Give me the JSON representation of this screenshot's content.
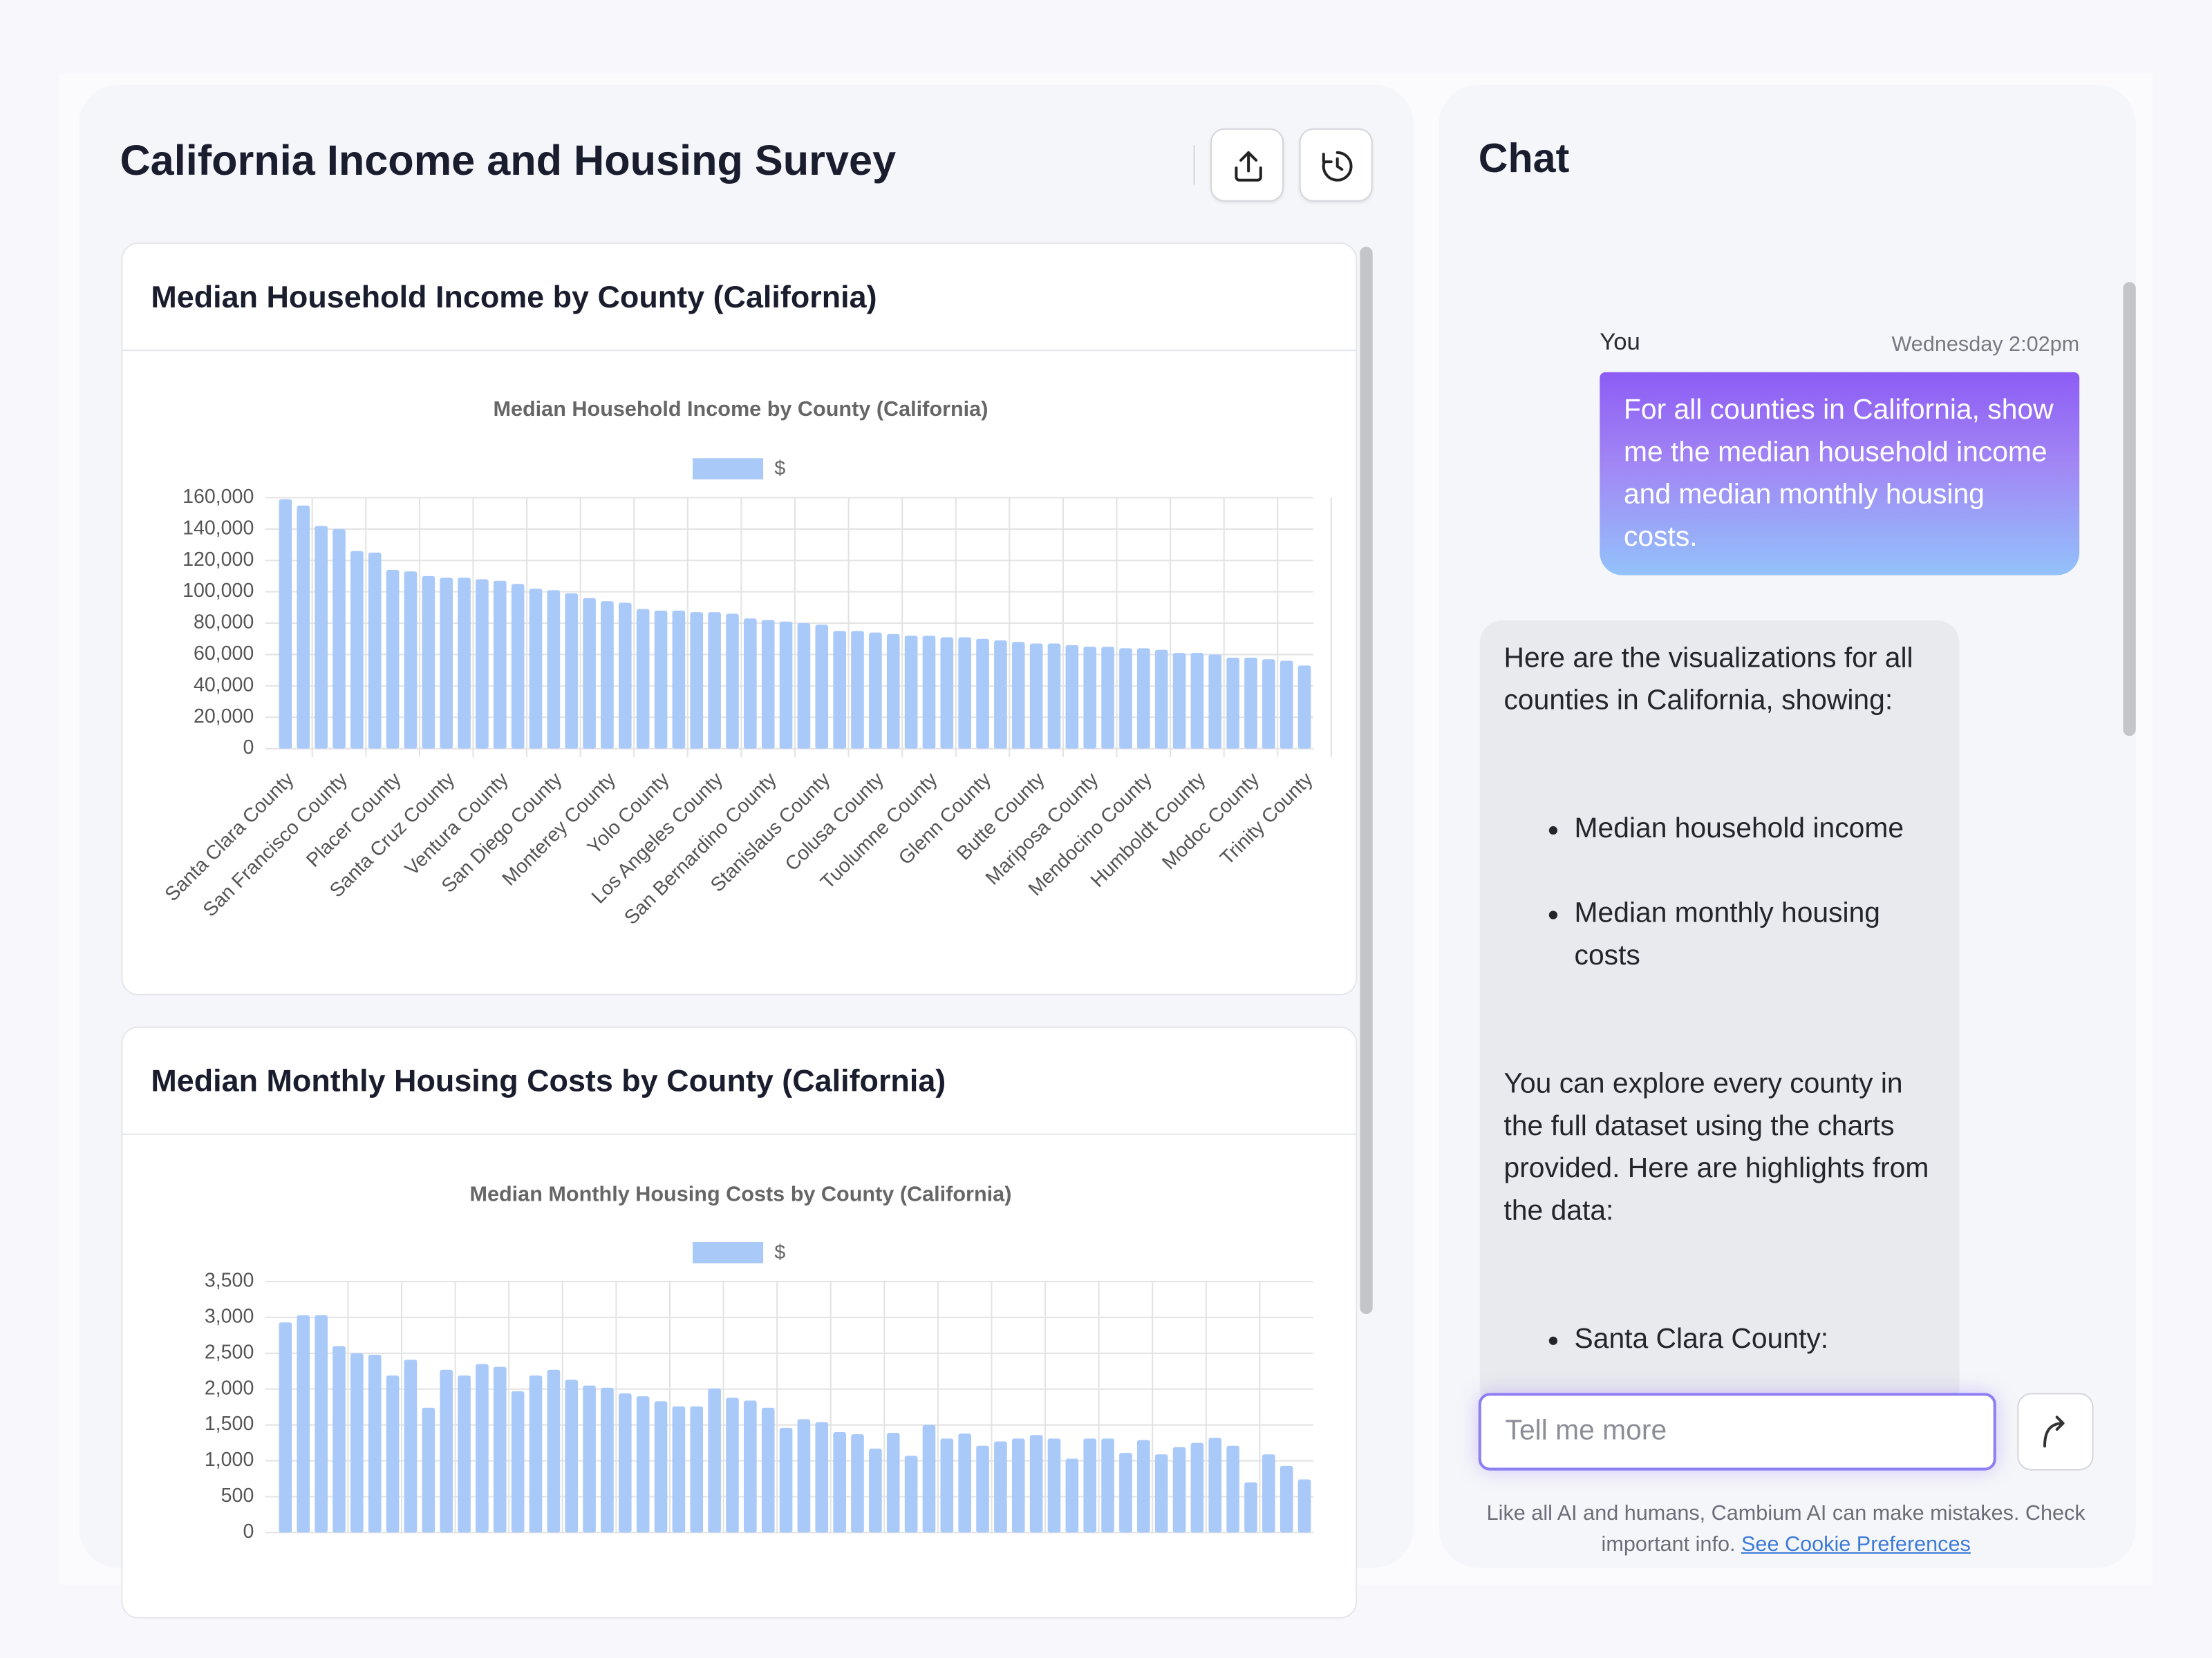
{
  "header": {
    "title": "California Income and Housing Survey"
  },
  "panels": [
    {
      "heading": "Median Household Income by County (California)"
    },
    {
      "heading": "Median Monthly Housing Costs by County (California)"
    }
  ],
  "chart_data": [
    {
      "type": "bar",
      "title": "Median Household Income by County (California)",
      "categories": [
        "Santa Clara County",
        null,
        null,
        "San Francisco County",
        null,
        null,
        "Placer County",
        null,
        null,
        "Santa Cruz County",
        null,
        null,
        "Ventura County",
        null,
        null,
        "San Diego County",
        null,
        null,
        "Monterey County",
        null,
        null,
        "Yolo County",
        null,
        null,
        "Los Angeles County",
        null,
        null,
        "San Bernardino County",
        null,
        null,
        "Stanislaus County",
        null,
        null,
        "Colusa County",
        null,
        null,
        "Tuolumne County",
        null,
        null,
        "Glenn County",
        null,
        null,
        "Butte County",
        null,
        null,
        "Mariposa County",
        null,
        null,
        "Mendocino County",
        null,
        null,
        "Humboldt County",
        null,
        null,
        "Modoc County",
        null,
        null,
        "Trinity County"
      ],
      "series": [
        {
          "name": "$",
          "color": "#a9c9f9",
          "values": [
            159000,
            155000,
            142000,
            140000,
            126000,
            125000,
            114000,
            113000,
            110000,
            109000,
            109000,
            108000,
            107000,
            105000,
            102000,
            101000,
            99000,
            96000,
            94000,
            93000,
            89000,
            88000,
            88000,
            87000,
            87000,
            86000,
            83000,
            82000,
            81000,
            80000,
            79000,
            75000,
            75000,
            74000,
            73000,
            72000,
            72000,
            71000,
            71000,
            70000,
            69000,
            68000,
            67000,
            67000,
            66000,
            65000,
            65000,
            64000,
            64000,
            63000,
            61000,
            61000,
            60000,
            58000,
            58000,
            57000,
            56000,
            53000
          ]
        }
      ],
      "ylim": [
        0,
        160000
      ],
      "yticks": [
        0,
        {
          "value": 20000,
          "label": "20,000"
        },
        {
          "value": 40000,
          "label": "40,000"
        },
        {
          "value": 60000,
          "label": "60,000"
        },
        {
          "value": 80000,
          "label": "80,000"
        },
        {
          "value": 100000,
          "label": "100,000"
        },
        {
          "value": 120000,
          "label": "120,000"
        },
        {
          "value": 140000,
          "label": "140,000"
        },
        {
          "value": 160000,
          "label": "160,000"
        }
      ],
      "grid": true,
      "legend": "top"
    },
    {
      "type": "bar",
      "title": "Median Monthly Housing Costs by County (California)",
      "series": [
        {
          "name": "$",
          "color": "#a9c9f9",
          "values": [
            2930,
            3030,
            3030,
            2600,
            2500,
            2480,
            2190,
            2410,
            1740,
            2270,
            2190,
            2350,
            2310,
            1970,
            2190,
            2270,
            2130,
            2050,
            2020,
            1940,
            1900,
            1830,
            1760,
            1760,
            2010,
            1880,
            1840,
            1740,
            1460,
            1580,
            1540,
            1400,
            1370,
            1170,
            1390,
            1070,
            1500,
            1310,
            1380,
            1210,
            1270,
            1310,
            1360,
            1310,
            1030,
            1310,
            1310,
            1110,
            1290,
            1090,
            1190,
            1250,
            1320,
            1210,
            700,
            1090,
            930,
            740
          ]
        }
      ],
      "ylim": [
        0,
        3500
      ],
      "yticks": [
        0,
        500,
        {
          "value": 1000,
          "label": "1,000"
        },
        {
          "value": 1500,
          "label": "1,500"
        },
        {
          "value": 2000,
          "label": "2,000"
        },
        {
          "value": 2500,
          "label": "2,500"
        },
        {
          "value": 3000,
          "label": "3,000"
        },
        {
          "value": 3500,
          "label": "3,500"
        }
      ],
      "grid": true,
      "legend": "top"
    }
  ],
  "chat": {
    "title": "Chat",
    "user": {
      "name": "You",
      "time": "Wednesday 2:02pm",
      "text": "For all counties in California, show me the median household income and median monthly housing costs."
    },
    "assistant": {
      "intro": "Here are the visualizations for all counties in California, showing:",
      "bullets": [
        "Median household income",
        "Median monthly housing costs"
      ],
      "body": "You can explore every county in the full dataset using the charts provided. Here are highlights from the data:",
      "bullets2": [
        "Santa Clara County:"
      ]
    },
    "input_placeholder": "Tell me more",
    "disclaimer": "Like all AI and humans, Cambium AI can make mistakes. Check important info.",
    "link": "See Cookie Preferences"
  }
}
